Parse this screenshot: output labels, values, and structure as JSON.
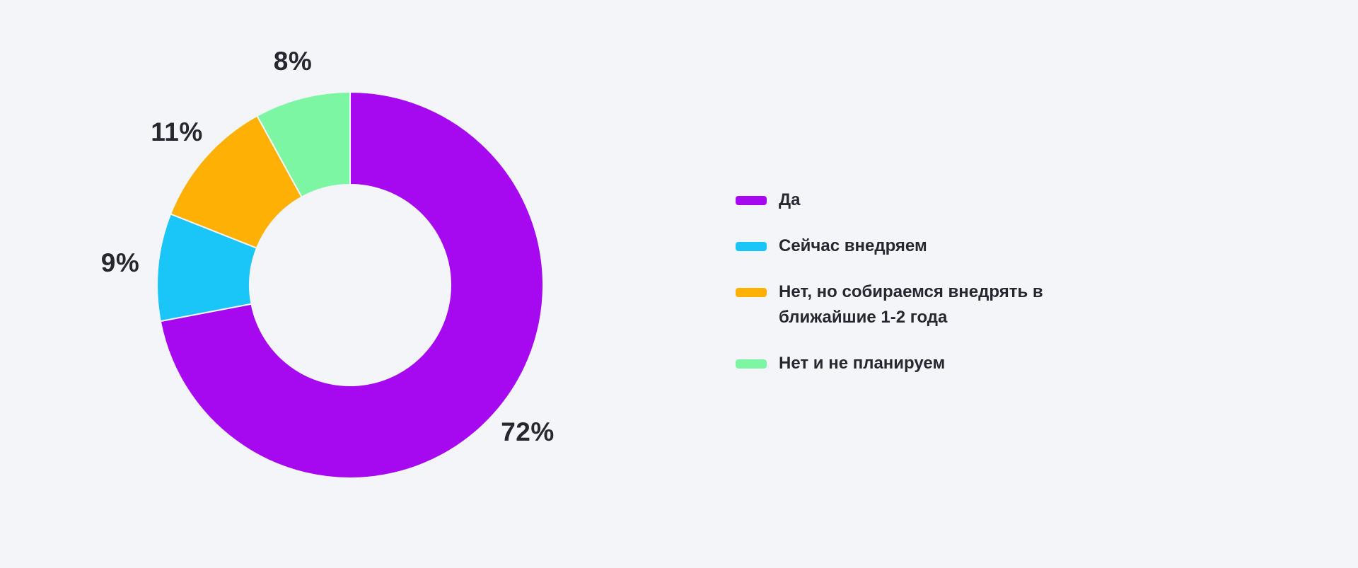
{
  "page": {
    "background_color": "#F4F5F9",
    "text_color": "#27282F",
    "title": ""
  },
  "chart_data": {
    "type": "pie",
    "variant": "donut",
    "title": "",
    "unit": "%",
    "direction": "clockwise",
    "start_angle_deg": 0,
    "legend_position": "right",
    "hole_ratio": 0.52,
    "categories": [
      "Да",
      "Сейчас внедряем",
      "Нет, но собираемся внедрять в ближайшие 1-2 года",
      "Нет и не планируем"
    ],
    "values": [
      72,
      9,
      11,
      8
    ],
    "data_labels": [
      "72%",
      "9%",
      "11%",
      "8%"
    ],
    "colors": [
      "#A609F0",
      "#19C6F7",
      "#FFB005",
      "#7DF6A4"
    ]
  },
  "legend": {
    "items": [
      {
        "label": "Да",
        "color": "#A609F0"
      },
      {
        "label": "Сейчас внедряем",
        "color": "#19C6F7"
      },
      {
        "label": "Нет, но собираемся внедрять в ближайшие 1-2 года",
        "color": "#FFB005"
      },
      {
        "label": "Нет и не планируем",
        "color": "#7DF6A4"
      }
    ]
  }
}
